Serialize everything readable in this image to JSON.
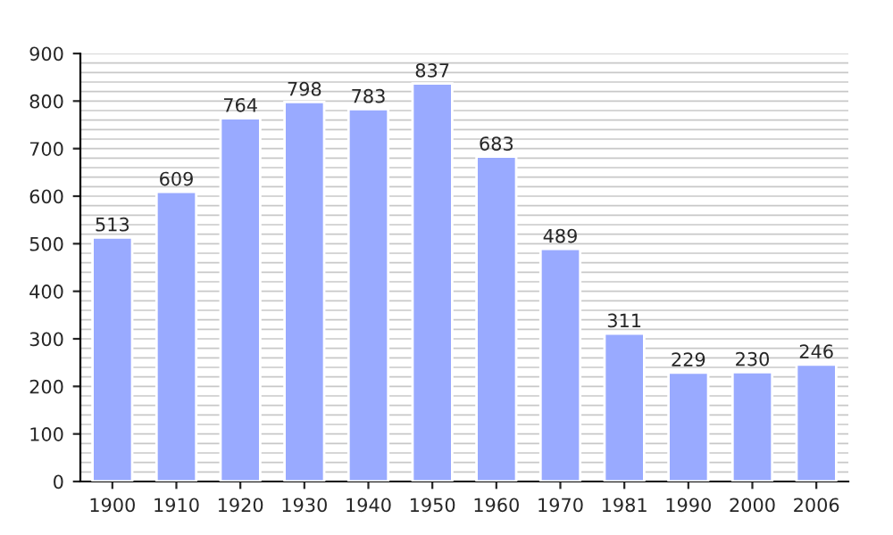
{
  "chart_data": {
    "type": "bar",
    "categories": [
      "1900",
      "1910",
      "1920",
      "1930",
      "1940",
      "1950",
      "1960",
      "1970",
      "1981",
      "1990",
      "2000",
      "2006"
    ],
    "values": [
      513,
      609,
      764,
      798,
      783,
      837,
      683,
      489,
      311,
      229,
      230,
      246
    ],
    "color": "#99aaff",
    "ylim": [
      0,
      900
    ],
    "yticks": [
      0,
      100,
      200,
      300,
      400,
      500,
      600,
      700,
      800,
      900
    ],
    "grid": "y",
    "data_labels": true
  }
}
